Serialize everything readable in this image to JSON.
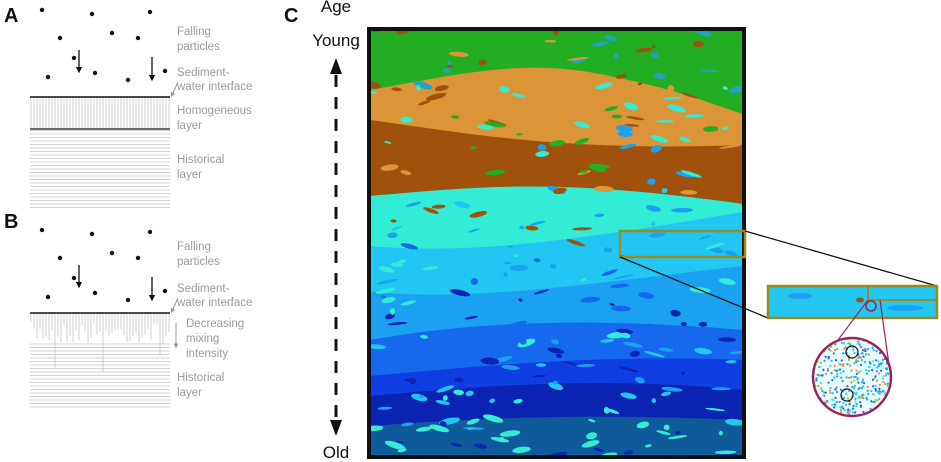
{
  "panels": [
    {
      "label": "A",
      "annotations": [
        [
          "Falling",
          "particles"
        ],
        [
          "Sediment-",
          "water interface"
        ],
        [
          "Homogeneous",
          "layer"
        ],
        [
          "Historical",
          "layer"
        ]
      ]
    },
    {
      "label": "B",
      "annotations": [
        [
          "Falling",
          "particles"
        ],
        [
          "Sediment-",
          "water interface"
        ],
        [
          "Decreasing",
          "mixing",
          "intensity"
        ],
        [
          "Historical",
          "layer"
        ]
      ]
    },
    {
      "label": "C",
      "axis_title": "Age",
      "top_label": "Young",
      "bottom_label": "Old"
    }
  ]
}
